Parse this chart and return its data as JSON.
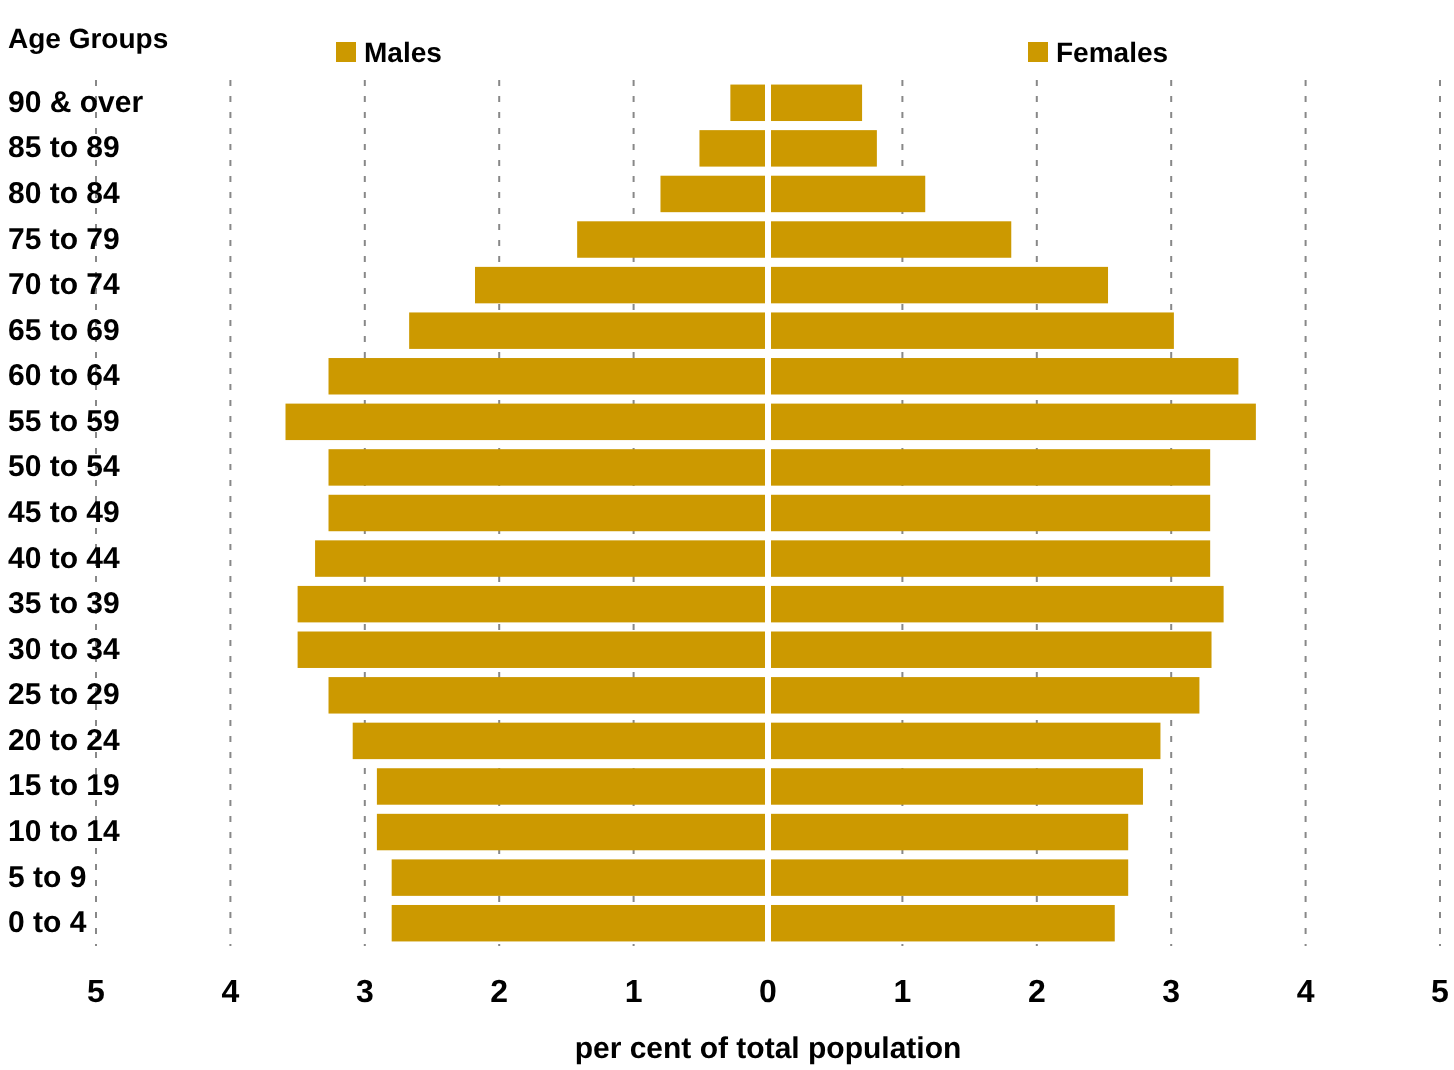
{
  "chart_data": {
    "type": "bar",
    "orientation": "horizontal",
    "ylabel": "Age Groups",
    "xlabel": "per cent of total population",
    "categories": [
      "90 & over",
      "85 to 89",
      "80 to 84",
      "75 to 79",
      "70 to 74",
      "65 to 69",
      "60 to 64",
      "55 to 59",
      "50 to 54",
      "45 to 49",
      "40 to 44",
      "35 to 39",
      "30 to 34",
      "25 to 29",
      "20 to 24",
      "15 to 19",
      "10 to 14",
      "5 to 9",
      "0 to 4"
    ],
    "series": [
      {
        "name": "Males",
        "color": "#cc9900",
        "values": [
          -0.28,
          -0.51,
          -0.8,
          -1.42,
          -2.18,
          -2.67,
          -3.27,
          -3.59,
          -3.27,
          -3.27,
          -3.37,
          -3.5,
          -3.5,
          -3.27,
          -3.09,
          -2.91,
          -2.91,
          -2.8,
          -2.8
        ]
      },
      {
        "name": "Females",
        "color": "#cc9900",
        "values": [
          0.7,
          0.81,
          1.17,
          1.81,
          2.53,
          3.02,
          3.5,
          3.63,
          3.29,
          3.29,
          3.29,
          3.39,
          3.3,
          3.21,
          2.92,
          2.79,
          2.68,
          2.68,
          2.58
        ]
      }
    ],
    "xlim": [
      -5,
      5
    ],
    "xticks": [
      {
        "value": -5,
        "label": "5"
      },
      {
        "value": -4,
        "label": "4"
      },
      {
        "value": -3,
        "label": "3"
      },
      {
        "value": -2,
        "label": "2"
      },
      {
        "value": -1,
        "label": "1"
      },
      0,
      1,
      2,
      3,
      4,
      5
    ],
    "grid": "x",
    "legend": "top",
    "stacked": true
  }
}
